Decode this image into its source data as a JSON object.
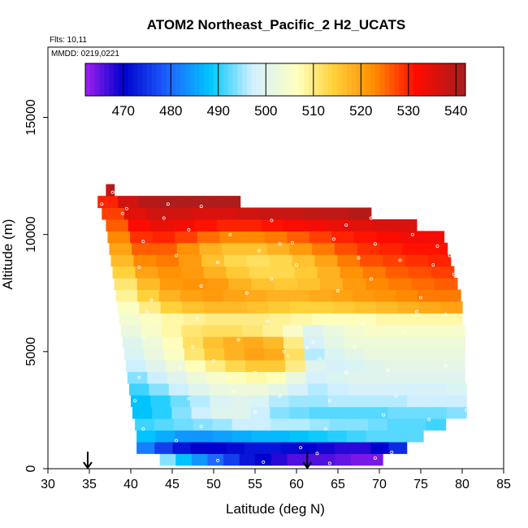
{
  "chart_data": {
    "type": "heatmap",
    "title": "ATOM2 Northeast_Pacific_2 H2_UCATS",
    "flights_note": "Flts: 10,11",
    "dates_note": "MMDD: 0219,0221",
    "xlabel": "Latitude (deg N)",
    "ylabel": "Altitude (m)",
    "xlim": [
      30,
      85
    ],
    "ylim": [
      0,
      18000
    ],
    "x_ticks": [
      "30",
      "35",
      "40",
      "45",
      "50",
      "55",
      "60",
      "65",
      "70",
      "75",
      "80",
      "85"
    ],
    "y_ticks": [
      "0",
      "5000",
      "10000",
      "15000"
    ],
    "colorbar": {
      "range": [
        462,
        542
      ],
      "ticks": [
        "470",
        "480",
        "490",
        "500",
        "510",
        "520",
        "530",
        "540"
      ],
      "placement": "top-inside"
    },
    "arrows_latitude": [
      34.8,
      61.3
    ],
    "rows": [
      {
        "alt": 400,
        "x0": 43.5,
        "x1": 70.4,
        "values": [
          494,
          488,
          484,
          480,
          476,
          472,
          470,
          468,
          466,
          466,
          466,
          465,
          464,
          464
        ]
      },
      {
        "alt": 900,
        "x0": 40.7,
        "x1": 73.3,
        "values": [
          482,
          476,
          472,
          470,
          470,
          471,
          472,
          472,
          471,
          470,
          469,
          468,
          468,
          470,
          474
        ]
      },
      {
        "alt": 1400,
        "x0": 40.7,
        "x1": 75.3,
        "values": [
          488,
          486,
          484,
          484,
          485,
          486,
          487,
          487,
          488,
          489,
          490,
          491,
          492,
          492,
          492
        ]
      },
      {
        "alt": 1900,
        "x0": 40.5,
        "x1": 78.0,
        "values": [
          491,
          492,
          493,
          494,
          495,
          497,
          497,
          496,
          496,
          495,
          494,
          494,
          493,
          492,
          492,
          491
        ]
      },
      {
        "alt": 2400,
        "x0": 40.2,
        "x1": 80.5,
        "values": [
          488,
          490,
          494,
          497,
          500,
          500,
          497,
          494,
          493,
          492,
          492,
          492,
          492,
          493,
          493,
          493,
          494
        ]
      },
      {
        "alt": 2900,
        "x0": 40.0,
        "x1": 80.5,
        "values": [
          488,
          490,
          493,
          496,
          499,
          500,
          499,
          496,
          495,
          495,
          496,
          496,
          496,
          496,
          497,
          497,
          497
        ]
      },
      {
        "alt": 3400,
        "x0": 39.8,
        "x1": 80.5,
        "values": [
          491,
          494,
          497,
          500,
          502,
          503,
          503,
          501,
          498,
          496,
          497,
          498,
          498,
          498,
          498,
          498,
          499
        ]
      },
      {
        "alt": 3900,
        "x0": 39.6,
        "x1": 80.3,
        "values": [
          494,
          497,
          500,
          503,
          505,
          507,
          508,
          507,
          502,
          498,
          499,
          500,
          500,
          500,
          500,
          500,
          500
        ]
      },
      {
        "alt": 4400,
        "x0": 39.4,
        "x1": 80.3,
        "values": [
          497,
          500,
          503,
          507,
          510,
          513,
          515,
          515,
          510,
          500,
          498,
          499,
          500,
          501,
          501,
          501,
          501
        ]
      },
      {
        "alt": 4900,
        "x0": 39.2,
        "x1": 80.3,
        "values": [
          499,
          502,
          506,
          511,
          515,
          518,
          520,
          519,
          512,
          496,
          499,
          501,
          502,
          502,
          502,
          502,
          502
        ]
      },
      {
        "alt": 5400,
        "x0": 39.0,
        "x1": 80.3,
        "values": [
          500,
          503,
          507,
          512,
          516,
          518,
          519,
          517,
          510,
          498,
          501,
          503,
          503,
          503,
          503,
          503,
          503
        ]
      },
      {
        "alt": 5900,
        "x0": 38.8,
        "x1": 80.3,
        "values": [
          502,
          505,
          508,
          511,
          512,
          512,
          511,
          509,
          505,
          500,
          502,
          504,
          505,
          505,
          505,
          505,
          505
        ]
      },
      {
        "alt": 6400,
        "x0": 38.6,
        "x1": 80.0,
        "values": [
          504,
          506,
          508,
          509,
          510,
          510,
          510,
          509,
          508,
          507,
          507,
          507,
          508,
          508,
          508,
          508
        ]
      },
      {
        "alt": 6900,
        "x0": 38.4,
        "x1": 80.0,
        "values": [
          506,
          510,
          514,
          516,
          517,
          517,
          516,
          515,
          514,
          514,
          515,
          516,
          517,
          518,
          519,
          520
        ]
      },
      {
        "alt": 7400,
        "x0": 38.2,
        "x1": 79.8,
        "values": [
          509,
          514,
          518,
          520,
          521,
          520,
          519,
          518,
          518,
          519,
          520,
          521,
          522,
          523,
          524,
          524
        ]
      },
      {
        "alt": 7900,
        "x0": 38.0,
        "x1": 79.4,
        "values": [
          511,
          517,
          521,
          522,
          521,
          518,
          516,
          515,
          516,
          518,
          521,
          523,
          524,
          525,
          526
        ]
      },
      {
        "alt": 8400,
        "x0": 37.8,
        "x1": 79.0,
        "values": [
          514,
          520,
          522,
          521,
          518,
          515,
          513,
          513,
          515,
          518,
          522,
          524,
          526,
          527,
          528
        ]
      },
      {
        "alt": 8900,
        "x0": 37.6,
        "x1": 78.6,
        "values": [
          517,
          523,
          524,
          521,
          516,
          513,
          512,
          513,
          516,
          520,
          524,
          527,
          528,
          529,
          530
        ]
      },
      {
        "alt": 9400,
        "x0": 37.4,
        "x1": 78.2,
        "values": [
          520,
          526,
          526,
          522,
          518,
          516,
          516,
          518,
          521,
          524,
          527,
          529,
          530,
          531,
          531
        ]
      },
      {
        "alt": 9900,
        "x0": 37.2,
        "x1": 77.8,
        "values": [
          523,
          529,
          530,
          528,
          525,
          523,
          523,
          524,
          526,
          528,
          530,
          531,
          532,
          533,
          533
        ]
      },
      {
        "alt": 10400,
        "x0": 37.0,
        "x1": 74.5,
        "values": [
          526,
          532,
          534,
          533,
          531,
          530,
          530,
          531,
          532,
          533,
          534,
          535,
          536,
          536
        ]
      },
      {
        "alt": 10900,
        "x0": 36.5,
        "x1": 69.0,
        "values": [
          528,
          535,
          537,
          537,
          536,
          536,
          537,
          538,
          538,
          539,
          539,
          540
        ]
      },
      {
        "alt": 11400,
        "x0": 36.0,
        "x1": 53.2,
        "values": [
          530,
          537,
          540,
          541,
          541,
          541,
          541
        ]
      },
      {
        "alt": 11900,
        "x0": 37.0,
        "x1": 38.0,
        "values": [
          538,
          541
        ]
      }
    ],
    "sample_points": [
      [
        43.0,
        400
      ],
      [
        50.5,
        350
      ],
      [
        56.0,
        280
      ],
      [
        64.0,
        230
      ],
      [
        69.5,
        450
      ],
      [
        62.5,
        650
      ],
      [
        60.5,
        900
      ],
      [
        71.5,
        700
      ],
      [
        41.5,
        1700
      ],
      [
        45.5,
        1200
      ],
      [
        48.5,
        1800
      ],
      [
        55.0,
        2400
      ],
      [
        63.5,
        1700
      ],
      [
        70.5,
        2300
      ],
      [
        76.0,
        2100
      ],
      [
        40.5,
        2900
      ],
      [
        47.0,
        3000
      ],
      [
        52.5,
        3300
      ],
      [
        58.0,
        3100
      ],
      [
        64.0,
        2900
      ],
      [
        72.0,
        3100
      ],
      [
        80.5,
        2500
      ],
      [
        41.0,
        3900
      ],
      [
        46.0,
        4300
      ],
      [
        50.0,
        4600
      ],
      [
        55.0,
        4100
      ],
      [
        59.0,
        4800
      ],
      [
        62.8,
        4700
      ],
      [
        66.0,
        4100
      ],
      [
        71.0,
        4200
      ],
      [
        78.0,
        4400
      ],
      [
        41.5,
        5600
      ],
      [
        47.5,
        5200
      ],
      [
        53.0,
        5500
      ],
      [
        58.5,
        5000
      ],
      [
        62.0,
        5400
      ],
      [
        67.0,
        5200
      ],
      [
        73.0,
        5800
      ],
      [
        42.0,
        6700
      ],
      [
        48.0,
        6400
      ],
      [
        56.5,
        6300
      ],
      [
        61.3,
        5150
      ],
      [
        68.0,
        6200
      ],
      [
        74.5,
        6700
      ],
      [
        78.0,
        6600
      ],
      [
        42.5,
        7200
      ],
      [
        48.5,
        7800
      ],
      [
        54.0,
        7500
      ],
      [
        57.0,
        8100
      ],
      [
        65.0,
        7600
      ],
      [
        69.0,
        8100
      ],
      [
        75.0,
        7300
      ],
      [
        79.0,
        8300
      ],
      [
        41.0,
        8600
      ],
      [
        45.5,
        9100
      ],
      [
        50.5,
        8800
      ],
      [
        55.5,
        9300
      ],
      [
        60.0,
        8700
      ],
      [
        67.5,
        9000
      ],
      [
        72.5,
        8900
      ],
      [
        76.5,
        8700
      ],
      [
        78.5,
        9100
      ],
      [
        41.5,
        9700
      ],
      [
        47.0,
        10200
      ],
      [
        52.0,
        10000
      ],
      [
        58.0,
        9600
      ],
      [
        59.5,
        9650
      ],
      [
        64.5,
        9800
      ],
      [
        69.5,
        9600
      ],
      [
        74.0,
        10000
      ],
      [
        77.0,
        9500
      ],
      [
        39.0,
        10900
      ],
      [
        44.0,
        10700
      ],
      [
        48.5,
        11200
      ],
      [
        57.0,
        10600
      ],
      [
        66.0,
        10400
      ],
      [
        69.0,
        10700
      ],
      [
        36.5,
        11300
      ],
      [
        39.5,
        11100
      ],
      [
        37.8,
        11800
      ],
      [
        44.5,
        11300
      ]
    ]
  }
}
